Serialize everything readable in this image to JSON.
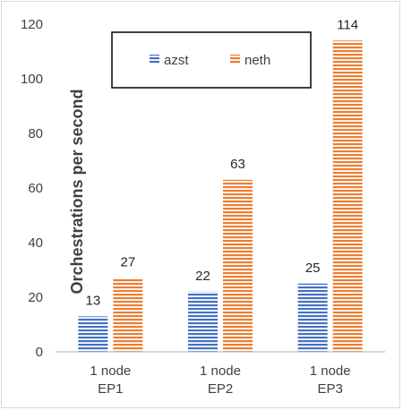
{
  "chart_data": {
    "type": "bar",
    "title": "",
    "xlabel": "",
    "ylabel": "Orchestrations per second",
    "ylim": [
      0,
      120
    ],
    "yticks": [
      0,
      20,
      40,
      60,
      80,
      100,
      120
    ],
    "grid": false,
    "legend": "top-center",
    "categories": [
      [
        "1 node",
        "EP1"
      ],
      [
        "1 node",
        "EP2"
      ],
      [
        "1 node",
        "EP3"
      ]
    ],
    "series": [
      {
        "name": "azst",
        "values": [
          13,
          22,
          25
        ],
        "color": "#4472c4"
      },
      {
        "name": "neth",
        "values": [
          27,
          63,
          114
        ],
        "color": "#ed7d31"
      }
    ],
    "data_labels": true,
    "bar_pattern": "horizontal-stripes"
  }
}
